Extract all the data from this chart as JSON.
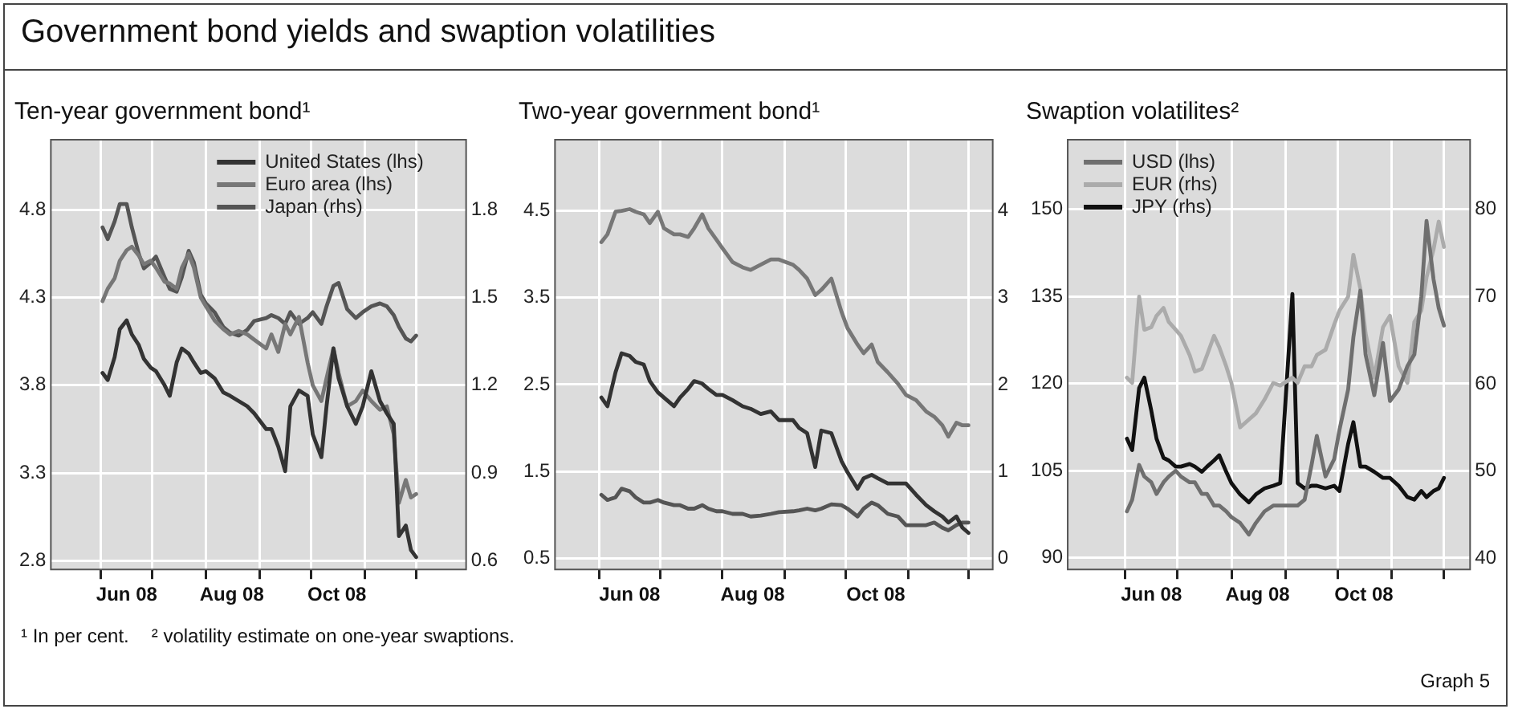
{
  "chart_data": [
    {
      "type": "other",
      "title": "Government bond yields and swaption volatilities"
    },
    {
      "type": "line",
      "title": "Ten-year government bond¹",
      "x": [
        "2008-06-02",
        "2008-06-05",
        "2008-06-09",
        "2008-06-12",
        "2008-06-16",
        "2008-06-19",
        "2008-06-23",
        "2008-06-26",
        "2008-06-30",
        "2008-07-03",
        "2008-07-08",
        "2008-07-11",
        "2008-07-15",
        "2008-07-18",
        "2008-07-22",
        "2008-07-25",
        "2008-07-29",
        "2008-08-01",
        "2008-08-06",
        "2008-08-11",
        "2008-08-15",
        "2008-08-20",
        "2008-08-25",
        "2008-08-29",
        "2008-09-05",
        "2008-09-08",
        "2008-09-12",
        "2008-09-16",
        "2008-09-19",
        "2008-09-24",
        "2008-09-29",
        "2008-10-02",
        "2008-10-07",
        "2008-10-10",
        "2008-10-14",
        "2008-10-17",
        "2008-10-22",
        "2008-10-27",
        "2008-10-31",
        "2008-11-05",
        "2008-11-10",
        "2008-11-14",
        "2008-11-18",
        "2008-11-21",
        "2008-11-25",
        "2008-11-28",
        "2008-12-01"
      ],
      "series": [
        {
          "name": "United States (lhs)",
          "color": "#333333",
          "values": [
            3.87,
            3.83,
            3.96,
            4.12,
            4.17,
            4.09,
            4.03,
            3.95,
            3.9,
            3.88,
            3.8,
            3.74,
            3.93,
            4.01,
            3.98,
            3.93,
            3.87,
            3.88,
            3.84,
            3.76,
            3.74,
            3.71,
            3.68,
            3.64,
            3.55,
            3.55,
            3.45,
            3.31,
            3.68,
            3.77,
            3.74,
            3.52,
            3.39,
            3.68,
            4.01,
            3.84,
            3.68,
            3.58,
            3.68,
            3.88,
            3.71,
            3.64,
            3.58,
            2.94,
            3.0,
            2.86,
            2.82
          ]
        },
        {
          "name": "Euro area (lhs)",
          "color": "#777777",
          "values": [
            4.28,
            4.35,
            4.41,
            4.51,
            4.57,
            4.59,
            4.54,
            4.49,
            4.51,
            4.47,
            4.39,
            4.38,
            4.35,
            4.47,
            4.55,
            4.47,
            4.3,
            4.25,
            4.17,
            4.12,
            4.09,
            4.11,
            4.09,
            4.06,
            4.01,
            4.09,
            3.99,
            4.15,
            4.09,
            4.19,
            3.93,
            3.8,
            3.71,
            3.84,
            4.01,
            3.87,
            3.68,
            3.71,
            3.77,
            3.71,
            3.66,
            3.68,
            3.52,
            3.13,
            3.26,
            3.16,
            3.18
          ]
        },
        {
          "name": "Japan (rhs)",
          "color": "#555555",
          "axis": "y2",
          "values": [
            1.74,
            1.7,
            1.76,
            1.82,
            1.82,
            1.74,
            1.65,
            1.6,
            1.62,
            1.64,
            1.57,
            1.53,
            1.52,
            1.57,
            1.66,
            1.62,
            1.51,
            1.48,
            1.45,
            1.4,
            1.38,
            1.37,
            1.39,
            1.42,
            1.43,
            1.44,
            1.43,
            1.41,
            1.45,
            1.41,
            1.43,
            1.45,
            1.41,
            1.47,
            1.54,
            1.55,
            1.46,
            1.43,
            1.45,
            1.47,
            1.48,
            1.47,
            1.44,
            1.4,
            1.36,
            1.35,
            1.37
          ]
        }
      ],
      "xlim": [
        "2008-05-03",
        "2008-12-30"
      ],
      "xticks": [
        {
          "value": "2008-06-01",
          "label": null
        },
        {
          "value": "2008-06-16",
          "label": "Jun 08"
        },
        {
          "value": "2008-07-01",
          "label": null
        },
        {
          "value": "2008-08-01",
          "label": null
        },
        {
          "value": "2008-08-16",
          "label": "Aug 08"
        },
        {
          "value": "2008-09-01",
          "label": null
        },
        {
          "value": "2008-10-01",
          "label": null
        },
        {
          "value": "2008-10-16",
          "label": "Oct 08"
        },
        {
          "value": "2008-11-01",
          "label": null
        },
        {
          "value": "2008-12-01",
          "label": null
        }
      ],
      "ylim": [
        2.75,
        5.2
      ],
      "yticks": [
        2.8,
        3.3,
        3.8,
        4.3,
        4.8
      ],
      "y2lim": [
        0.57,
        2.04
      ],
      "y2ticks": [
        0.6,
        0.9,
        1.2,
        1.5,
        1.8
      ],
      "grid": true,
      "legend": "top right",
      "marker": "none",
      "line_style": "solid"
    },
    {
      "type": "line",
      "title": "Two-year government bond¹",
      "x": [
        "2008-06-02",
        "2008-06-05",
        "2008-06-09",
        "2008-06-12",
        "2008-06-16",
        "2008-06-19",
        "2008-06-23",
        "2008-06-26",
        "2008-06-30",
        "2008-07-03",
        "2008-07-08",
        "2008-07-11",
        "2008-07-15",
        "2008-07-18",
        "2008-07-22",
        "2008-07-25",
        "2008-07-29",
        "2008-08-01",
        "2008-08-06",
        "2008-08-11",
        "2008-08-15",
        "2008-08-20",
        "2008-08-25",
        "2008-08-29",
        "2008-09-05",
        "2008-09-08",
        "2008-09-12",
        "2008-09-16",
        "2008-09-19",
        "2008-09-24",
        "2008-09-29",
        "2008-10-02",
        "2008-10-07",
        "2008-10-10",
        "2008-10-14",
        "2008-10-17",
        "2008-10-22",
        "2008-10-27",
        "2008-10-31",
        "2008-11-05",
        "2008-11-10",
        "2008-11-14",
        "2008-11-18",
        "2008-11-21",
        "2008-11-25",
        "2008-11-28",
        "2008-12-01"
      ],
      "series": [
        {
          "color": "#333333",
          "values": [
            2.35,
            2.25,
            2.64,
            2.86,
            2.83,
            2.76,
            2.73,
            2.54,
            2.41,
            2.35,
            2.25,
            2.35,
            2.45,
            2.54,
            2.51,
            2.45,
            2.38,
            2.38,
            2.32,
            2.25,
            2.22,
            2.16,
            2.19,
            2.09,
            2.09,
            2.0,
            1.94,
            1.55,
            1.97,
            1.94,
            1.62,
            1.49,
            1.3,
            1.42,
            1.46,
            1.42,
            1.36,
            1.36,
            1.36,
            1.23,
            1.11,
            1.04,
            0.98,
            0.91,
            0.98,
            0.85,
            0.79
          ]
        },
        {
          "color": "#777777",
          "values": [
            4.14,
            4.23,
            4.49,
            4.5,
            4.52,
            4.49,
            4.46,
            4.36,
            4.49,
            4.3,
            4.23,
            4.23,
            4.2,
            4.3,
            4.46,
            4.3,
            4.17,
            4.07,
            3.91,
            3.85,
            3.82,
            3.88,
            3.94,
            3.94,
            3.88,
            3.82,
            3.72,
            3.53,
            3.59,
            3.72,
            3.34,
            3.15,
            2.96,
            2.86,
            2.96,
            2.76,
            2.64,
            2.51,
            2.38,
            2.32,
            2.19,
            2.13,
            2.03,
            1.9,
            2.06,
            2.03,
            2.03
          ]
        },
        {
          "color": "#555555",
          "axis": "y2",
          "values": [
            0.73,
            0.67,
            0.7,
            0.8,
            0.77,
            0.7,
            0.64,
            0.64,
            0.67,
            0.64,
            0.61,
            0.61,
            0.57,
            0.57,
            0.61,
            0.57,
            0.54,
            0.54,
            0.51,
            0.51,
            0.48,
            0.49,
            0.51,
            0.53,
            0.54,
            0.55,
            0.57,
            0.55,
            0.57,
            0.62,
            0.61,
            0.57,
            0.48,
            0.57,
            0.64,
            0.61,
            0.51,
            0.48,
            0.38,
            0.38,
            0.38,
            0.41,
            0.35,
            0.32,
            0.38,
            0.41,
            0.41
          ]
        }
      ],
      "xlim": [
        "2008-05-10",
        "2008-12-13"
      ],
      "xticks": [
        {
          "value": "2008-06-01",
          "label": null
        },
        {
          "value": "2008-06-16",
          "label": "Jun 08"
        },
        {
          "value": "2008-07-01",
          "label": null
        },
        {
          "value": "2008-08-01",
          "label": null
        },
        {
          "value": "2008-08-16",
          "label": "Aug 08"
        },
        {
          "value": "2008-09-01",
          "label": null
        },
        {
          "value": "2008-10-01",
          "label": null
        },
        {
          "value": "2008-10-16",
          "label": "Oct 08"
        },
        {
          "value": "2008-11-01",
          "label": null
        },
        {
          "value": "2008-12-01",
          "label": null
        }
      ],
      "ylim": [
        0.37,
        5.32
      ],
      "yticks": [
        0.5,
        1.5,
        2.5,
        3.5,
        4.5
      ],
      "y2lim": [
        -0.13,
        4.82
      ],
      "y2ticks": [
        0,
        1,
        2,
        3,
        4
      ],
      "grid": true,
      "marker": "none",
      "line_style": "solid"
    },
    {
      "type": "line",
      "title": "Swaption volatilites²",
      "x": [
        "2008-06-02",
        "2008-06-05",
        "2008-06-09",
        "2008-06-12",
        "2008-06-16",
        "2008-06-19",
        "2008-06-23",
        "2008-06-26",
        "2008-06-30",
        "2008-07-03",
        "2008-07-08",
        "2008-07-11",
        "2008-07-15",
        "2008-07-18",
        "2008-07-22",
        "2008-07-25",
        "2008-07-29",
        "2008-08-01",
        "2008-08-06",
        "2008-08-11",
        "2008-08-15",
        "2008-08-20",
        "2008-08-25",
        "2008-08-29",
        "2008-09-05",
        "2008-09-08",
        "2008-09-12",
        "2008-09-16",
        "2008-09-19",
        "2008-09-24",
        "2008-09-29",
        "2008-10-02",
        "2008-10-07",
        "2008-10-10",
        "2008-10-14",
        "2008-10-17",
        "2008-10-22",
        "2008-10-27",
        "2008-10-31",
        "2008-11-05",
        "2008-11-10",
        "2008-11-14",
        "2008-11-18",
        "2008-11-21",
        "2008-11-25",
        "2008-11-28",
        "2008-12-01"
      ],
      "series": [
        {
          "name": "USD (lhs)",
          "color": "#6f6f6f",
          "values": [
            98,
            100,
            106,
            104,
            103,
            101,
            103,
            104,
            105,
            104,
            103,
            103,
            101,
            101,
            99,
            99,
            98,
            97,
            96,
            94,
            96,
            98,
            99,
            99,
            99,
            99,
            100,
            106,
            111,
            104,
            107,
            112,
            119,
            128,
            136,
            125,
            118,
            127,
            117,
            119,
            123,
            125,
            135,
            148,
            138,
            133,
            130
          ]
        },
        {
          "name": "EUR (rhs)",
          "color": "#ababab",
          "axis": "y2",
          "values": [
            60.7,
            60.1,
            70,
            66.2,
            66.5,
            67.8,
            68.7,
            67.1,
            66.2,
            65.5,
            63.3,
            61.4,
            61.7,
            63.3,
            65.5,
            64.2,
            62,
            60.1,
            55,
            55.9,
            56.6,
            58.2,
            60.1,
            59.8,
            60.7,
            60.1,
            62,
            62,
            63.3,
            63.9,
            66.8,
            68.4,
            70,
            74.8,
            70.9,
            65.8,
            60.7,
            66.5,
            67.8,
            62,
            60.1,
            67.1,
            68.4,
            72.2,
            75.4,
            78.6,
            75.7
          ]
        },
        {
          "name": "JPY (rhs)",
          "color": "#111111",
          "axis": "y2",
          "values": [
            53.7,
            52.4,
            59.5,
            60.7,
            56.9,
            53.7,
            51.5,
            51.2,
            50.5,
            50.5,
            50.8,
            50.5,
            49.9,
            50.5,
            51.2,
            51.8,
            49.9,
            48.6,
            47.3,
            46.4,
            47.3,
            48,
            48.3,
            48.6,
            70.3,
            48.6,
            48,
            48.3,
            48.3,
            48,
            48.3,
            47.7,
            53.1,
            55.6,
            50.5,
            50.5,
            49.9,
            49.2,
            49.2,
            48.3,
            47,
            46.7,
            47.7,
            47,
            47.7,
            48,
            49.2
          ]
        }
      ],
      "xlim": [
        "2008-04-29",
        "2008-12-16"
      ],
      "xticks": [
        {
          "value": "2008-06-01",
          "label": null
        },
        {
          "value": "2008-06-16",
          "label": "Jun 08"
        },
        {
          "value": "2008-07-01",
          "label": null
        },
        {
          "value": "2008-08-01",
          "label": null
        },
        {
          "value": "2008-08-16",
          "label": "Aug 08"
        },
        {
          "value": "2008-09-01",
          "label": null
        },
        {
          "value": "2008-10-01",
          "label": null
        },
        {
          "value": "2008-10-16",
          "label": "Oct 08"
        },
        {
          "value": "2008-11-01",
          "label": null
        },
        {
          "value": "2008-12-01",
          "label": null
        }
      ],
      "ylim": [
        88,
        162
      ],
      "yticks": [
        90,
        105,
        120,
        135,
        150
      ],
      "y2lim": [
        38.7,
        88
      ],
      "y2ticks": [
        40,
        50,
        60,
        70,
        80
      ],
      "grid": true,
      "legend": "top left",
      "marker": "none",
      "line_style": "solid"
    },
    {
      "type": "other",
      "annotations": [
        "¹ In per cent.",
        "² volatility estimate on one-year swaptions.",
        "Graph 5"
      ]
    }
  ]
}
